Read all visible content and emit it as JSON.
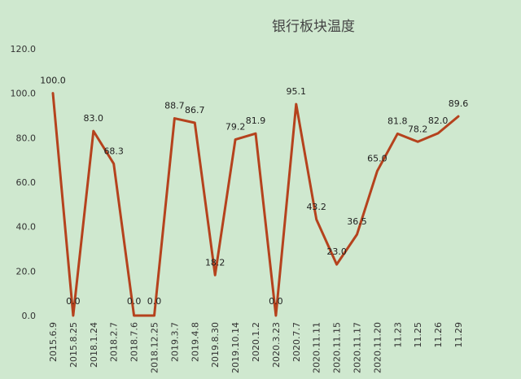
{
  "chart_data": {
    "type": "line",
    "title": "银行板块温度",
    "xlabel": "",
    "ylabel": "",
    "ylim": [
      0,
      120
    ],
    "yticks": [
      "0.0",
      "20.0",
      "40.0",
      "60.0",
      "80.0",
      "100.0",
      "120.0"
    ],
    "grid": false,
    "legend": "none",
    "line_color": "#b5421d",
    "categories": [
      "2015.6.9",
      "2015.8.25",
      "2018.1.24",
      "2018.2.7",
      "2018.7.6",
      "2018.12.25",
      "2019.3.7",
      "2019.4.8",
      "2019.8.30",
      "2019.10.14",
      "2020.1.2",
      "2020.3.23",
      "2020.7.7",
      "2020.11.11",
      "2020.11.15",
      "2020.11.17",
      "2020.11.20",
      "11.23",
      "11.25",
      "11.26",
      "11.29"
    ],
    "values": [
      100.0,
      0.0,
      83.0,
      68.3,
      0.0,
      0.0,
      88.7,
      86.7,
      18.2,
      79.2,
      81.9,
      0.0,
      95.1,
      43.2,
      23.0,
      36.5,
      65.0,
      81.8,
      78.2,
      82.0,
      89.6
    ],
    "labels": [
      "100.0",
      "0.0",
      "83.0",
      "68.3",
      "0.0",
      "0.0",
      "88.7",
      "86.7",
      "18.2",
      "79.2",
      "81.9",
      "0.0",
      "95.1",
      "43.2",
      "23.0",
      "36.5",
      "65.0",
      "81.8",
      "78.2",
      "82.0",
      "89.6"
    ]
  }
}
